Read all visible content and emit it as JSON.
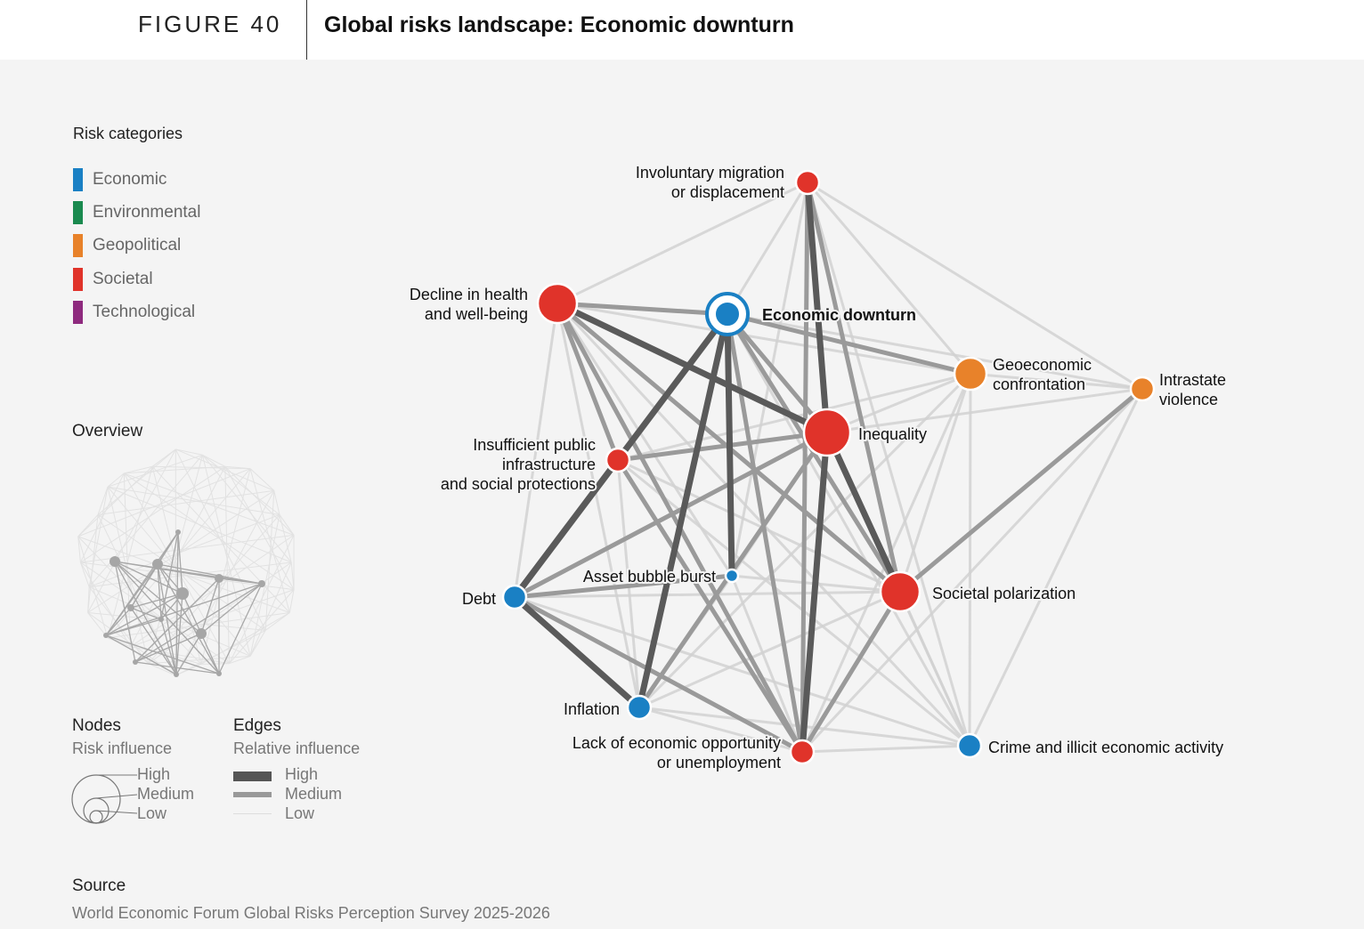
{
  "header": {
    "figure_label": "FIGURE 40",
    "title": "Global risks landscape: Economic downturn"
  },
  "legend": {
    "title": "Risk categories",
    "categories": [
      {
        "label": "Economic",
        "color": "#1a80c4"
      },
      {
        "label": "Environmental",
        "color": "#1a8a4f"
      },
      {
        "label": "Geopolitical",
        "color": "#e8822a"
      },
      {
        "label": "Societal",
        "color": "#e0332a"
      },
      {
        "label": "Technological",
        "color": "#8e2a7e"
      }
    ]
  },
  "overview": {
    "title": "Overview"
  },
  "node_legend": {
    "title": "Nodes",
    "subtitle": "Risk influence",
    "levels": [
      "High",
      "Medium",
      "Low"
    ]
  },
  "edge_legend": {
    "title": "Edges",
    "subtitle": "Relative influence",
    "levels": [
      "High",
      "Medium",
      "Low"
    ]
  },
  "source": {
    "title": "Source",
    "text": "World Economic Forum Global Risks Perception Survey 2025-2026"
  },
  "network": {
    "focus_node": "econ",
    "nodes": [
      {
        "id": "econ",
        "label": [
          "Economic downturn"
        ],
        "category": "Economic",
        "influence": "high"
      },
      {
        "id": "migr",
        "label": [
          "Involuntary migration",
          "or displacement"
        ],
        "category": "Societal",
        "influence": "low"
      },
      {
        "id": "health",
        "label": [
          "Decline in health",
          "and well-being"
        ],
        "category": "Societal",
        "influence": "high"
      },
      {
        "id": "geoecon",
        "label": [
          "Geoeconomic",
          "confrontation"
        ],
        "category": "Geopolitical",
        "influence": "medium"
      },
      {
        "id": "intra",
        "label": [
          "Intrastate",
          "violence"
        ],
        "category": "Geopolitical",
        "influence": "low"
      },
      {
        "id": "ineq",
        "label": [
          "Inequality"
        ],
        "category": "Societal",
        "influence": "very-high"
      },
      {
        "id": "infra",
        "label": [
          "Insufficient public",
          "infrastructure",
          "and social protections"
        ],
        "category": "Societal",
        "influence": "low"
      },
      {
        "id": "bubble",
        "label": [
          "Asset bubble burst"
        ],
        "category": "Economic",
        "influence": "very-low"
      },
      {
        "id": "debt",
        "label": [
          "Debt"
        ],
        "category": "Economic",
        "influence": "low"
      },
      {
        "id": "polar",
        "label": [
          "Societal polarization"
        ],
        "category": "Societal",
        "influence": "high"
      },
      {
        "id": "infl",
        "label": [
          "Inflation"
        ],
        "category": "Economic",
        "influence": "low"
      },
      {
        "id": "unemp",
        "label": [
          "Lack of economic opportunity",
          "or unemployment"
        ],
        "category": "Societal",
        "influence": "low"
      },
      {
        "id": "crime",
        "label": [
          "Crime and illicit economic activity"
        ],
        "category": "Economic",
        "influence": "low"
      }
    ],
    "edges": [
      {
        "source": "ineq",
        "target": "unemp",
        "strength": "high"
      },
      {
        "source": "debt",
        "target": "infra",
        "strength": "high"
      },
      {
        "source": "debt",
        "target": "infl",
        "strength": "high"
      },
      {
        "source": "econ",
        "target": "infl",
        "strength": "high"
      },
      {
        "source": "econ",
        "target": "bubble",
        "strength": "high"
      },
      {
        "source": "health",
        "target": "ineq",
        "strength": "high"
      },
      {
        "source": "econ",
        "target": "debt",
        "strength": "high"
      },
      {
        "source": "ineq",
        "target": "polar",
        "strength": "high"
      },
      {
        "source": "migr",
        "target": "ineq",
        "strength": "high"
      },
      {
        "source": "econ",
        "target": "ineq",
        "strength": "medium"
      },
      {
        "source": "econ",
        "target": "unemp",
        "strength": "medium"
      },
      {
        "source": "econ",
        "target": "polar",
        "strength": "medium"
      },
      {
        "source": "health",
        "target": "infra",
        "strength": "medium"
      },
      {
        "source": "health",
        "target": "polar",
        "strength": "medium"
      },
      {
        "source": "health",
        "target": "unemp",
        "strength": "medium"
      },
      {
        "source": "ineq",
        "target": "infra",
        "strength": "medium"
      },
      {
        "source": "ineq",
        "target": "debt",
        "strength": "medium"
      },
      {
        "source": "ineq",
        "target": "infl",
        "strength": "medium"
      },
      {
        "source": "polar",
        "target": "intra",
        "strength": "medium"
      },
      {
        "source": "polar",
        "target": "unemp",
        "strength": "medium"
      },
      {
        "source": "migr",
        "target": "polar",
        "strength": "medium"
      },
      {
        "source": "econ",
        "target": "geoecon",
        "strength": "medium"
      },
      {
        "source": "debt",
        "target": "bubble",
        "strength": "medium"
      },
      {
        "source": "debt",
        "target": "unemp",
        "strength": "medium"
      },
      {
        "source": "health",
        "target": "econ",
        "strength": "medium"
      },
      {
        "source": "infra",
        "target": "unemp",
        "strength": "medium"
      },
      {
        "source": "migr",
        "target": "unemp",
        "strength": "medium"
      },
      {
        "source": "econ",
        "target": "infra",
        "strength": "medium"
      },
      {
        "source": "health",
        "target": "migr",
        "strength": "low"
      },
      {
        "source": "health",
        "target": "geoecon",
        "strength": "low"
      },
      {
        "source": "health",
        "target": "debt",
        "strength": "low"
      },
      {
        "source": "health",
        "target": "infl",
        "strength": "low"
      },
      {
        "source": "health",
        "target": "bubble",
        "strength": "low"
      },
      {
        "source": "health",
        "target": "crime",
        "strength": "low"
      },
      {
        "source": "econ",
        "target": "migr",
        "strength": "low"
      },
      {
        "source": "econ",
        "target": "intra",
        "strength": "low"
      },
      {
        "source": "econ",
        "target": "crime",
        "strength": "low"
      },
      {
        "source": "migr",
        "target": "geoecon",
        "strength": "low"
      },
      {
        "source": "migr",
        "target": "intra",
        "strength": "low"
      },
      {
        "source": "migr",
        "target": "bubble",
        "strength": "low"
      },
      {
        "source": "migr",
        "target": "crime",
        "strength": "low"
      },
      {
        "source": "geoecon",
        "target": "intra",
        "strength": "low"
      },
      {
        "source": "geoecon",
        "target": "ineq",
        "strength": "low"
      },
      {
        "source": "geoecon",
        "target": "infl",
        "strength": "low"
      },
      {
        "source": "geoecon",
        "target": "unemp",
        "strength": "low"
      },
      {
        "source": "geoecon",
        "target": "crime",
        "strength": "low"
      },
      {
        "source": "geoecon",
        "target": "infra",
        "strength": "low"
      },
      {
        "source": "geoecon",
        "target": "polar",
        "strength": "low"
      },
      {
        "source": "intra",
        "target": "ineq",
        "strength": "low"
      },
      {
        "source": "intra",
        "target": "crime",
        "strength": "low"
      },
      {
        "source": "intra",
        "target": "unemp",
        "strength": "low"
      },
      {
        "source": "ineq",
        "target": "crime",
        "strength": "low"
      },
      {
        "source": "ineq",
        "target": "bubble",
        "strength": "low"
      },
      {
        "source": "infra",
        "target": "polar",
        "strength": "low"
      },
      {
        "source": "infra",
        "target": "infl",
        "strength": "low"
      },
      {
        "source": "infra",
        "target": "crime",
        "strength": "low"
      },
      {
        "source": "bubble",
        "target": "polar",
        "strength": "low"
      },
      {
        "source": "bubble",
        "target": "unemp",
        "strength": "low"
      },
      {
        "source": "bubble",
        "target": "infl",
        "strength": "low"
      },
      {
        "source": "debt",
        "target": "polar",
        "strength": "low"
      },
      {
        "source": "debt",
        "target": "crime",
        "strength": "low"
      },
      {
        "source": "polar",
        "target": "infl",
        "strength": "low"
      },
      {
        "source": "polar",
        "target": "crime",
        "strength": "low"
      },
      {
        "source": "infl",
        "target": "unemp",
        "strength": "low"
      },
      {
        "source": "infl",
        "target": "crime",
        "strength": "low"
      },
      {
        "source": "unemp",
        "target": "crime",
        "strength": "low"
      }
    ]
  }
}
